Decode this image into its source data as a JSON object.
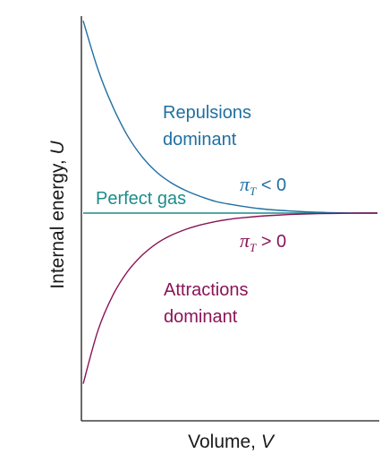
{
  "chart_data": {
    "type": "line",
    "title": "",
    "xlabel": "Volume, ",
    "xlabel_var": "V",
    "ylabel": "Internal energy, ",
    "ylabel_var": "U",
    "xlim": [
      0,
      1
    ],
    "ylim": [
      -1,
      1
    ],
    "grid": false,
    "colors": {
      "repulsive": "#1f6fa3",
      "perfect": "#1d8c8c",
      "attractive": "#8a1457",
      "axis": "#1a1a1a"
    },
    "series": [
      {
        "key": "repulsive",
        "x": [
          0.0,
          0.05,
          0.1,
          0.15,
          0.2,
          0.25,
          0.3,
          0.35,
          0.4,
          0.45,
          0.5,
          0.55,
          0.6,
          0.65,
          0.7,
          0.75,
          0.8,
          0.85,
          0.9,
          0.95,
          1.0
        ],
        "y": [
          0.99,
          0.74,
          0.55,
          0.4,
          0.29,
          0.21,
          0.155,
          0.115,
          0.085,
          0.06,
          0.045,
          0.033,
          0.023,
          0.016,
          0.011,
          0.007,
          0.004,
          0.002,
          0.001,
          0.0,
          0.0
        ]
      },
      {
        "key": "perfect",
        "x": [
          0.0,
          1.0
        ],
        "y": [
          0.0,
          0.0
        ]
      },
      {
        "key": "attractive",
        "x": [
          0.0,
          0.05,
          0.1,
          0.15,
          0.2,
          0.25,
          0.3,
          0.35,
          0.4,
          0.45,
          0.5,
          0.55,
          0.6,
          0.65,
          0.7,
          0.75,
          0.8,
          0.85,
          0.9,
          0.95,
          1.0
        ],
        "y": [
          -0.93,
          -0.64,
          -0.45,
          -0.32,
          -0.23,
          -0.165,
          -0.12,
          -0.088,
          -0.064,
          -0.046,
          -0.033,
          -0.024,
          -0.017,
          -0.012,
          -0.008,
          -0.005,
          -0.003,
          -0.002,
          -0.001,
          0.0,
          0.0
        ]
      }
    ],
    "annotations": {
      "repulsions_line1": "Repulsions",
      "repulsions_line2": "dominant",
      "perfect_gas": "Perfect gas",
      "attractions_line1": "Attractions",
      "attractions_line2": "dominant",
      "pi_symbol": "π",
      "pi_subscript": "T",
      "pi_negative_relation": " < 0",
      "pi_positive_relation": " > 0"
    }
  }
}
